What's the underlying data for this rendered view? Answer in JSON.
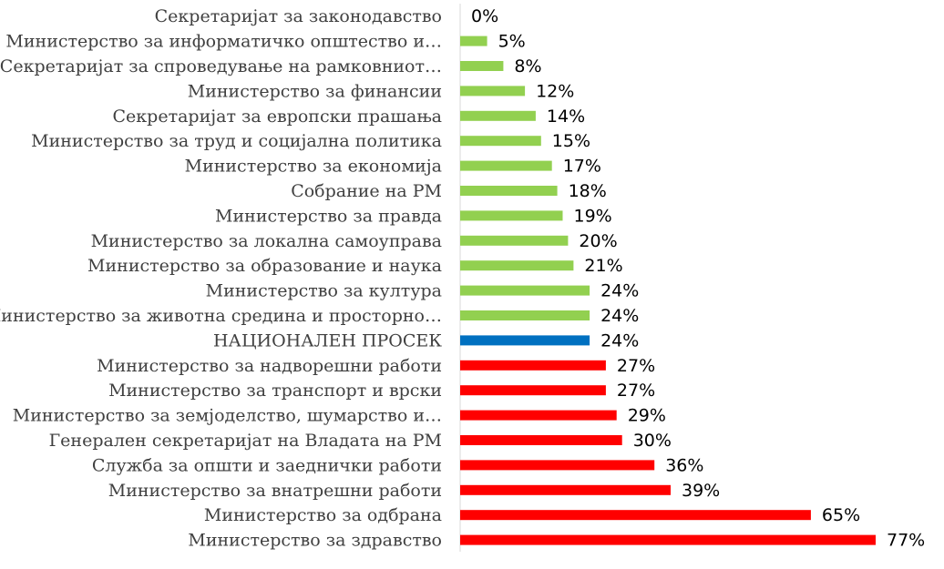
{
  "chart_data": {
    "type": "bar",
    "orientation": "horizontal",
    "categories": [
      "Секретаријат за законодавство",
      "Министерство за информатичко општество и…",
      "Секретаријат за спроведување на рамковниот…",
      "Министерство за финансии",
      "Секретаријат за европски прашања",
      "Министерство за труд и социјална политика",
      "Министерство за економија",
      "Собрание на РМ",
      "Министерство за правда",
      "Министерство за локална самоуправа",
      "Министерство за образование и наука",
      "Министерство за култура",
      "Министерство за животна средина и просторно…",
      "НАЦИОНАЛЕН ПРОСЕК",
      "Министерство за надворешни работи",
      "Министерство за транспорт и врски",
      "Министерство за земјоделство, шумарство и…",
      "Генерален секретаријат на Владата на РМ",
      "Служба за општи и заеднички работи",
      "Министерство за внатрешни работи",
      "Министерство за одбрана",
      "Министерство за здравство"
    ],
    "values": [
      0,
      5,
      8,
      12,
      14,
      15,
      17,
      18,
      19,
      20,
      21,
      24,
      24,
      24,
      27,
      27,
      29,
      30,
      36,
      39,
      65,
      77
    ],
    "value_labels": [
      "0%",
      "5%",
      "8%",
      "12%",
      "14%",
      "15%",
      "17%",
      "18%",
      "19%",
      "20%",
      "21%",
      "24%",
      "24%",
      "24%",
      "27%",
      "27%",
      "29%",
      "30%",
      "36%",
      "39%",
      "65%",
      "77%"
    ],
    "bar_colors": [
      "#92d050",
      "#92d050",
      "#92d050",
      "#92d050",
      "#92d050",
      "#92d050",
      "#92d050",
      "#92d050",
      "#92d050",
      "#92d050",
      "#92d050",
      "#92d050",
      "#92d050",
      "#0070c0",
      "#ff0000",
      "#ff0000",
      "#ff0000",
      "#ff0000",
      "#ff0000",
      "#ff0000",
      "#ff0000",
      "#ff0000"
    ],
    "xlim": [
      0,
      77
    ],
    "grid": false,
    "legend": "none"
  }
}
